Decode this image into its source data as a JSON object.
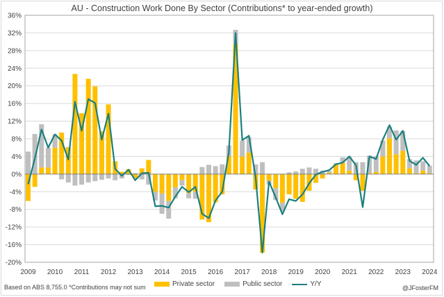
{
  "chart_data": {
    "type": "bar",
    "title": "AU - Construction Work Done By Sector (Contributions* to year-ended growth)",
    "xlabel": "",
    "ylabel": "",
    "ylim": [
      -20,
      36
    ],
    "yticks": [
      "-20%",
      "-16%",
      "-12%",
      "-8%",
      "-4%",
      "0%",
      "4%",
      "8%",
      "12%",
      "16%",
      "20%",
      "24%",
      "28%",
      "32%",
      "36%"
    ],
    "ytick_values": [
      -20,
      -16,
      -12,
      -8,
      -4,
      0,
      4,
      8,
      12,
      16,
      20,
      24,
      28,
      32,
      36
    ],
    "xticks": [
      "2009",
      "2010",
      "2011",
      "2012",
      "2013",
      "2014",
      "2015",
      "2016",
      "2017",
      "2018",
      "2019",
      "2020",
      "2021",
      "2022",
      "2023",
      "2024"
    ],
    "grid": true,
    "legend_position": "bottom",
    "start_period": "2009 Q1",
    "frequency": "quarterly",
    "series": [
      {
        "name": "Private sector",
        "kind": "stacked-bar",
        "color": "#FFC000",
        "values": [
          -6.1,
          -2.9,
          1.5,
          1.5,
          6.0,
          9.4,
          6.1,
          22.7,
          13.8,
          21.6,
          19.9,
          9.7,
          15.8,
          2.9,
          0.5,
          1.1,
          -1.0,
          1.3,
          3.2,
          -4.0,
          -4.4,
          -6.1,
          -3.0,
          -1.4,
          -4.3,
          -4.0,
          -10.3,
          -10.9,
          -6.4,
          -4.6,
          4.0,
          29.5,
          4.0,
          4.9,
          -3.5,
          -17.8,
          -1.5,
          -3.2,
          -6.5,
          -4.6,
          -5.6,
          -6.3,
          -3.8,
          -2.0,
          -1.0,
          0.3,
          2.3,
          2.5,
          0.8,
          -1.4,
          -3.8,
          0.2,
          0.5,
          4.0,
          8.1,
          4.5,
          5.3,
          1.3,
          0.2,
          0.8,
          0.2
        ]
      },
      {
        "name": "Public sector",
        "kind": "stacked-bar",
        "color": "#BFBFBF",
        "values": [
          5.1,
          9.1,
          9.8,
          4.5,
          3.0,
          -1.2,
          -1.9,
          -2.6,
          -2.4,
          -1.9,
          -1.6,
          -1.3,
          -1.0,
          -1.4,
          -1.0,
          -0.2,
          0.2,
          -1.2,
          -2.4,
          -2.0,
          -4.6,
          -4.0,
          -2.5,
          -1.2,
          -1.2,
          -1.6,
          1.6,
          2.1,
          1.8,
          2.2,
          2.5,
          3.2,
          3.6,
          3.5,
          2.2,
          2.7,
          -0.9,
          -2.7,
          -1.9,
          0.4,
          0.6,
          1.2,
          1.5,
          1.2,
          0.8,
          0.4,
          0.2,
          1.3,
          3.1,
          2.7,
          2.7,
          4.0,
          3.6,
          3.6,
          2.6,
          5.4,
          4.5,
          2.1,
          2.9,
          2.1,
          1.7
        ]
      },
      {
        "name": "Y/Y",
        "kind": "line",
        "color": "#1A7F7E",
        "values": [
          -2.3,
          3.5,
          10.1,
          6.0,
          9.0,
          7.6,
          3.3,
          16.4,
          9.8,
          17.0,
          16.1,
          7.8,
          13.7,
          1.2,
          -0.4,
          1.0,
          -1.4,
          0.2,
          0.3,
          -7.3,
          -7.2,
          -7.6,
          -5.1,
          -2.9,
          -4.1,
          -2.9,
          -9.0,
          -10.0,
          -6.0,
          -4.0,
          5.0,
          32.0,
          7.7,
          8.7,
          -0.8,
          -17.8,
          -1.7,
          -5.3,
          -9.1,
          -5.7,
          -6.1,
          -4.6,
          -2.1,
          -0.1,
          0.5,
          0.9,
          2.2,
          2.6,
          4.0,
          2.0,
          -7.5,
          4.0,
          3.4,
          7.8,
          11.1,
          7.8,
          9.8,
          3.0,
          2.1,
          3.7,
          1.8
        ]
      }
    ]
  },
  "legend": {
    "private_label": "Private sector",
    "public_label": "Public sector",
    "yy_label": "Y/Y"
  },
  "footnote": "Based on ABS  8,755.0 *Contributions may not sum",
  "credit": "@JFosterFM"
}
